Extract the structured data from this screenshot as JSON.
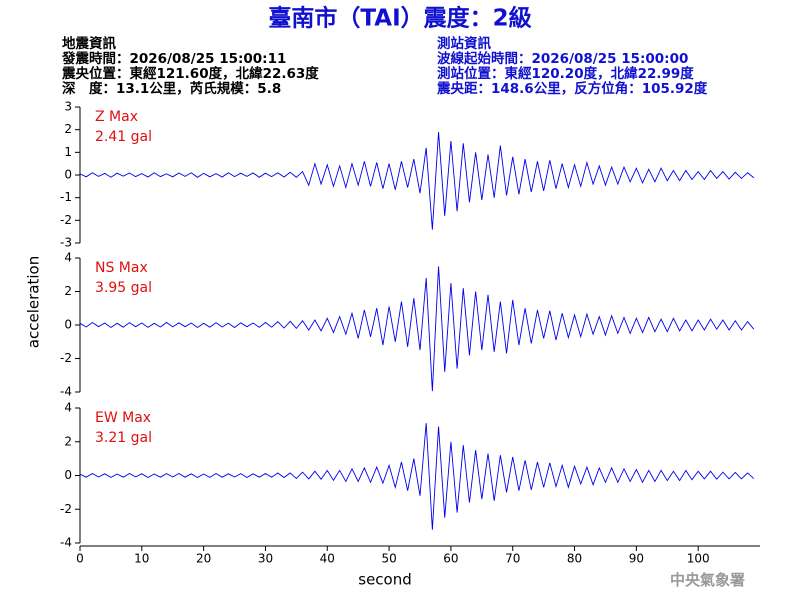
{
  "chart_data": {
    "type": "line",
    "title": "臺南市（TAI）震度：2級",
    "info_left": [
      "地震資訊",
      "發震時間：2026/08/25 15:00:11",
      "震央位置：東經121.60度，北緯22.63度",
      "深　度：13.1公里，芮氏規模：5.8"
    ],
    "info_right": [
      "測站資訊",
      "波線起始時間：2026/08/25 15:00:00",
      "測站位置：東經120.20度，北緯22.99度",
      "震央距：148.6公里，反方位角：105.92度"
    ],
    "credit": "中央氣象署",
    "xlabel": "second",
    "ylabel": "acceleration",
    "xlim": [
      0,
      110
    ],
    "xticks": [
      0,
      10,
      20,
      30,
      40,
      50,
      60,
      70,
      80,
      90,
      100
    ],
    "label_color": "#e01010",
    "x": [
      0,
      1,
      2,
      3,
      4,
      5,
      6,
      7,
      8,
      9,
      10,
      11,
      12,
      13,
      14,
      15,
      16,
      17,
      18,
      19,
      20,
      21,
      22,
      23,
      24,
      25,
      26,
      27,
      28,
      29,
      30,
      31,
      32,
      33,
      34,
      35,
      36,
      37,
      38,
      39,
      40,
      41,
      42,
      43,
      44,
      45,
      46,
      47,
      48,
      49,
      50,
      51,
      52,
      53,
      54,
      55,
      56,
      57,
      58,
      59,
      60,
      61,
      62,
      63,
      64,
      65,
      66,
      67,
      68,
      69,
      70,
      71,
      72,
      73,
      74,
      75,
      76,
      77,
      78,
      79,
      80,
      81,
      82,
      83,
      84,
      85,
      86,
      87,
      88,
      89,
      90,
      91,
      92,
      93,
      94,
      95,
      96,
      97,
      98,
      99,
      100,
      101,
      102,
      103,
      104,
      105,
      106,
      107,
      108,
      109
    ],
    "series": [
      {
        "name": "Z Max",
        "max_label": "2.41 gal",
        "color": "#0000ee",
        "ylim": [
          -3,
          3
        ],
        "yticks": [
          -3,
          -2,
          -1,
          0,
          1,
          2,
          3
        ],
        "values": [
          0.05,
          -0.08,
          0.1,
          -0.06,
          0.07,
          -0.1,
          0.08,
          -0.05,
          0.09,
          -0.07,
          0.06,
          -0.09,
          0.1,
          -0.07,
          0.05,
          -0.08,
          0.09,
          -0.06,
          0.1,
          -0.1,
          0.07,
          -0.08,
          0.06,
          -0.09,
          0.1,
          -0.07,
          0.08,
          -0.06,
          0.09,
          -0.1,
          0.08,
          -0.07,
          0.1,
          -0.09,
          0.12,
          -0.1,
          0.15,
          -0.45,
          0.5,
          -0.4,
          0.45,
          -0.5,
          0.4,
          -0.55,
          0.5,
          -0.45,
          0.6,
          -0.5,
          0.55,
          -0.6,
          0.5,
          -0.65,
          0.6,
          -0.55,
          0.7,
          -0.8,
          1.2,
          -2.41,
          1.9,
          -1.8,
          1.5,
          -1.6,
          1.4,
          -1.2,
          1.0,
          -1.1,
          0.9,
          -1.0,
          1.3,
          -0.9,
          0.8,
          -0.85,
          0.7,
          -0.75,
          0.6,
          -0.7,
          0.65,
          -0.6,
          0.5,
          -0.55,
          0.45,
          -0.5,
          0.55,
          -0.4,
          0.4,
          -0.45,
          0.35,
          -0.4,
          0.35,
          -0.3,
          0.3,
          -0.35,
          0.25,
          -0.3,
          0.3,
          -0.25,
          0.2,
          -0.25,
          0.2,
          -0.2,
          0.15,
          -0.2,
          0.2,
          -0.15,
          0.15,
          -0.18,
          0.12,
          -0.15,
          0.1,
          -0.12
        ]
      },
      {
        "name": "NS Max",
        "max_label": "3.95 gal",
        "color": "#0000ee",
        "ylim": [
          -4,
          4
        ],
        "yticks": [
          -4,
          -2,
          0,
          2,
          4
        ],
        "values": [
          0.1,
          -0.12,
          0.15,
          -0.1,
          0.12,
          -0.15,
          0.1,
          -0.13,
          0.14,
          -0.1,
          0.12,
          -0.14,
          0.1,
          -0.12,
          0.15,
          -0.11,
          0.13,
          -0.1,
          0.12,
          -0.15,
          0.1,
          -0.13,
          0.14,
          -0.12,
          0.11,
          -0.15,
          0.13,
          -0.1,
          0.12,
          -0.14,
          0.15,
          -0.13,
          0.2,
          -0.18,
          0.22,
          -0.2,
          0.25,
          -0.3,
          0.3,
          -0.35,
          0.4,
          -0.45,
          0.5,
          -0.55,
          0.7,
          -0.8,
          0.9,
          -0.7,
          1.0,
          -1.2,
          1.1,
          -1.0,
          1.4,
          -1.3,
          1.6,
          -1.5,
          2.8,
          -3.95,
          3.5,
          -2.8,
          2.5,
          -2.6,
          2.2,
          -1.8,
          2.0,
          -1.5,
          1.8,
          -1.6,
          1.4,
          -1.7,
          1.5,
          -1.2,
          1.0,
          -1.1,
          0.9,
          -0.8,
          0.85,
          -0.9,
          0.7,
          -0.75,
          0.6,
          -0.7,
          0.65,
          -0.55,
          0.5,
          -0.6,
          0.55,
          -0.5,
          0.45,
          -0.5,
          0.4,
          -0.45,
          0.45,
          -0.4,
          0.35,
          -0.4,
          0.4,
          -0.35,
          0.3,
          -0.35,
          0.3,
          -0.3,
          0.35,
          -0.25,
          0.3,
          -0.3,
          0.25,
          -0.3,
          0.2,
          -0.25
        ]
      },
      {
        "name": "EW Max",
        "max_label": "3.21 gal",
        "color": "#0000ee",
        "ylim": [
          -4,
          4
        ],
        "yticks": [
          -4,
          -2,
          0,
          2,
          4
        ],
        "values": [
          0.08,
          -0.1,
          0.12,
          -0.09,
          0.1,
          -0.11,
          0.09,
          -0.1,
          0.12,
          -0.08,
          0.1,
          -0.12,
          0.09,
          -0.1,
          0.11,
          -0.09,
          0.12,
          -0.1,
          0.1,
          -0.12,
          0.09,
          -0.11,
          0.12,
          -0.1,
          0.1,
          -0.09,
          0.11,
          -0.12,
          0.1,
          -0.1,
          0.12,
          -0.1,
          0.15,
          -0.12,
          0.15,
          -0.18,
          0.2,
          -0.2,
          0.25,
          -0.22,
          0.3,
          -0.28,
          0.3,
          -0.35,
          0.4,
          -0.35,
          0.45,
          -0.4,
          0.5,
          -0.45,
          0.6,
          -0.7,
          0.8,
          -0.9,
          1.0,
          -1.2,
          3.1,
          -3.21,
          2.9,
          -2.5,
          2.0,
          -2.2,
          1.8,
          -1.6,
          1.5,
          -1.4,
          1.3,
          -1.5,
          1.2,
          -1.0,
          1.1,
          -0.9,
          0.9,
          -0.85,
          0.8,
          -0.7,
          0.75,
          -0.65,
          0.6,
          -0.7,
          0.55,
          -0.5,
          0.5,
          -0.55,
          0.45,
          -0.4,
          0.45,
          -0.4,
          0.4,
          -0.35,
          0.35,
          -0.4,
          0.3,
          -0.35,
          0.3,
          -0.3,
          0.25,
          -0.3,
          0.3,
          -0.25,
          0.25,
          -0.2,
          0.25,
          -0.22,
          0.2,
          -0.2,
          0.18,
          -0.2,
          0.15,
          -0.18
        ]
      }
    ]
  }
}
